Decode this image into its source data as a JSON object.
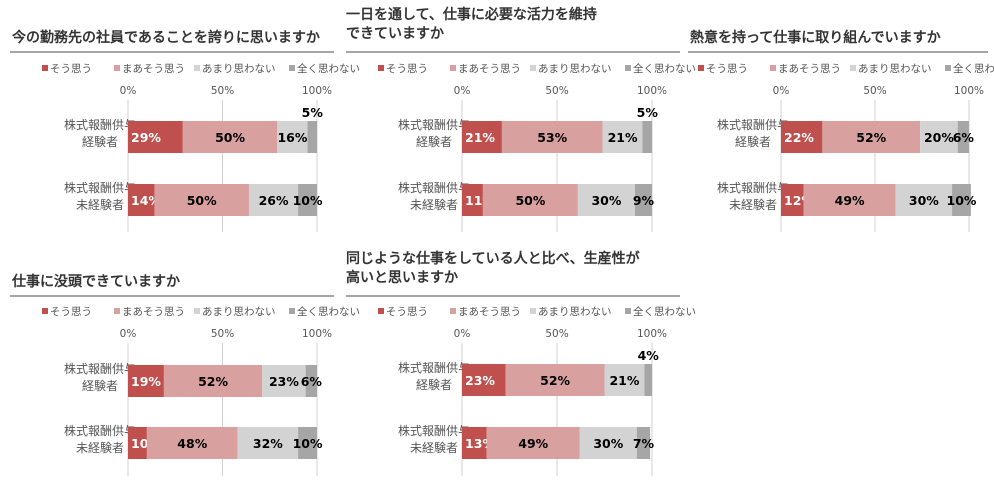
{
  "legend": [
    "そう思う",
    "まあそう思う",
    "あまり思わない",
    "全く思わない"
  ],
  "ticks": [
    "0%",
    "50%",
    "100%"
  ],
  "colors": [
    "#c0504d",
    "#d9a0a0",
    "#d3d3d3",
    "#a6a6a6"
  ],
  "label_colors": [
    "#ffffff",
    "#000000",
    "#000000",
    "#000000"
  ],
  "chart_data": [
    {
      "type": "bar",
      "stacked": true,
      "orientation": "horizontal",
      "title_lines": [
        "今の勤務先の社員であることを誇りに思いますか"
      ],
      "categories": [
        [
          "株式報酬供与",
          "経験者"
        ],
        [
          "株式報酬供与",
          "未経験者"
        ]
      ],
      "series": [
        {
          "name": "そう思う",
          "values": [
            29,
            14
          ]
        },
        {
          "name": "まあそう思う",
          "values": [
            50,
            50
          ]
        },
        {
          "name": "あまり思わない",
          "values": [
            16,
            26
          ]
        },
        {
          "name": "全く思わない",
          "values": [
            5,
            10
          ]
        }
      ],
      "xlim": [
        0,
        100
      ],
      "grid": true,
      "legend_position": "top"
    },
    {
      "type": "bar",
      "stacked": true,
      "orientation": "horizontal",
      "title_lines": [
        "一日を通して、仕事に必要な活力を維持",
        "できていますか"
      ],
      "categories": [
        [
          "株式報酬供与",
          "経験者"
        ],
        [
          "株式報酬供与",
          "未経験者"
        ]
      ],
      "series": [
        {
          "name": "そう思う",
          "values": [
            21,
            11
          ]
        },
        {
          "name": "まあそう思う",
          "values": [
            53,
            50
          ]
        },
        {
          "name": "あまり思わない",
          "values": [
            21,
            30
          ]
        },
        {
          "name": "全く思わない",
          "values": [
            5,
            9
          ]
        }
      ],
      "xlim": [
        0,
        100
      ],
      "grid": true,
      "legend_position": "top"
    },
    {
      "type": "bar",
      "stacked": true,
      "orientation": "horizontal",
      "title_lines": [
        "熱意を持って仕事に取り組んでいますか"
      ],
      "categories": [
        [
          "株式報酬供与",
          "経験者"
        ],
        [
          "株式報酬供与",
          "未経験者"
        ]
      ],
      "series": [
        {
          "name": "そう思う",
          "values": [
            22,
            12
          ]
        },
        {
          "name": "まあそう思う",
          "values": [
            52,
            49
          ]
        },
        {
          "name": "あまり思わない",
          "values": [
            20,
            30
          ]
        },
        {
          "name": "全く思わない",
          "values": [
            6,
            10
          ]
        }
      ],
      "xlim": [
        0,
        100
      ],
      "grid": true,
      "legend_position": "top"
    },
    {
      "type": "bar",
      "stacked": true,
      "orientation": "horizontal",
      "title_lines": [
        "仕事に没頭できていますか"
      ],
      "categories": [
        [
          "株式報酬供与",
          "経験者"
        ],
        [
          "株式報酬供与",
          "未経験者"
        ]
      ],
      "series": [
        {
          "name": "そう思う",
          "values": [
            19,
            10
          ]
        },
        {
          "name": "まあそう思う",
          "values": [
            52,
            48
          ]
        },
        {
          "name": "あまり思わない",
          "values": [
            23,
            32
          ]
        },
        {
          "name": "全く思わない",
          "values": [
            6,
            10
          ]
        }
      ],
      "xlim": [
        0,
        100
      ],
      "grid": true,
      "legend_position": "top"
    },
    {
      "type": "bar",
      "stacked": true,
      "orientation": "horizontal",
      "title_lines": [
        "同じような仕事をしている人と比べ、生産性が",
        "高いと思いますか"
      ],
      "categories": [
        [
          "株式報酬供与",
          "経験者"
        ],
        [
          "株式報酬供与",
          "未経験者"
        ]
      ],
      "series": [
        {
          "name": "そう思う",
          "values": [
            23,
            13
          ]
        },
        {
          "name": "まあそう思う",
          "values": [
            52,
            49
          ]
        },
        {
          "name": "あまり思わない",
          "values": [
            21,
            30
          ]
        },
        {
          "name": "全く思わない",
          "values": [
            4,
            7
          ]
        }
      ],
      "xlim": [
        0,
        100
      ],
      "grid": true,
      "legend_position": "top"
    }
  ]
}
